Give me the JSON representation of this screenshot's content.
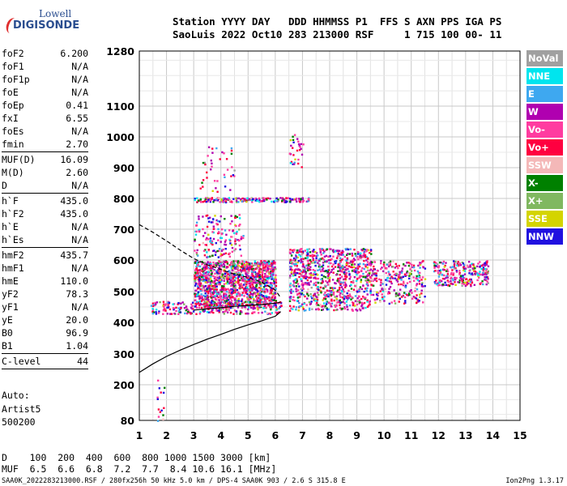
{
  "logo": {
    "top": "Lowell",
    "bottom": "DIGISONDE"
  },
  "header": {
    "line1": "Station YYYY DAY   DDD HHMMSS P1  FFS S AXN PPS IGA PS",
    "line2": "SaoLuis 2022 Oct10 283 213000 RSF     1 715 100 00- 11"
  },
  "params": [
    {
      "k": "foF2",
      "v": "6.200"
    },
    {
      "k": "foF1",
      "v": "N/A"
    },
    {
      "k": "foF1p",
      "v": "N/A"
    },
    {
      "k": "foE",
      "v": "N/A"
    },
    {
      "k": "foEp",
      "v": "0.41"
    },
    {
      "k": "fxI",
      "v": "6.55"
    },
    {
      "k": "foEs",
      "v": "N/A"
    },
    {
      "k": "fmin",
      "v": "2.70"
    },
    {
      "sep": true
    },
    {
      "k": "MUF(D)",
      "v": "16.09"
    },
    {
      "k": "M(D)",
      "v": "2.60"
    },
    {
      "k": "D",
      "v": "N/A"
    },
    {
      "sep": true
    },
    {
      "k": "h`F",
      "v": "435.0"
    },
    {
      "k": "h`F2",
      "v": "435.0"
    },
    {
      "k": "h`E",
      "v": "N/A"
    },
    {
      "k": "h`Es",
      "v": "N/A"
    },
    {
      "sep": true
    },
    {
      "k": "hmF2",
      "v": "435.7"
    },
    {
      "k": "hmF1",
      "v": "N/A"
    },
    {
      "k": "hmE",
      "v": "110.0"
    },
    {
      "k": "yF2",
      "v": "78.3"
    },
    {
      "k": "yF1",
      "v": "N/A"
    },
    {
      "k": "yE",
      "v": "20.0"
    },
    {
      "k": "B0",
      "v": "96.9"
    },
    {
      "k": "B1",
      "v": "1.04"
    },
    {
      "sep": true
    },
    {
      "k": "C-level",
      "v": "44"
    },
    {
      "sep": true
    }
  ],
  "auto": {
    "l1": "Auto:",
    "l2": "Artist5",
    "l3": "500200"
  },
  "legend": [
    {
      "label": "NoVal",
      "color": "#a0a0a0"
    },
    {
      "label": "NNE",
      "color": "#00e5ee"
    },
    {
      "label": "E",
      "color": "#3ea8f0"
    },
    {
      "label": "W",
      "color": "#b000b0"
    },
    {
      "label": "Vo-",
      "color": "#ff3ca0"
    },
    {
      "label": "Vo+",
      "color": "#ff0040"
    },
    {
      "label": "SSW",
      "color": "#f4b8b8"
    },
    {
      "label": "X-",
      "color": "#008000"
    },
    {
      "label": "X+",
      "color": "#80b860"
    },
    {
      "label": "SSE",
      "color": "#d4d400"
    },
    {
      "label": "NNW",
      "color": "#2010e0"
    }
  ],
  "muf_table": {
    "line1": "D    100  200  400  600  800 1000 1500 3000 [km]",
    "line2": "MUF  6.5  6.6  6.8  7.2  7.7  8.4 10.6 16.1 [MHz]"
  },
  "footer": {
    "left": "SAA0K_2022283213000.RSF / 280fx256h 50 kHz 5.0 km / DPS-4 SAA0K 903 / 2.6 S 315.8 E",
    "right": "Ion2Png 1.3.17"
  },
  "chart_data": {
    "type": "scatter",
    "title": "",
    "xlabel": "",
    "ylabel": "",
    "xlim": [
      1,
      15
    ],
    "ylim": [
      80,
      1280
    ],
    "x_ticks": [
      1,
      2,
      3,
      4,
      5,
      6,
      7,
      8,
      9,
      10,
      11,
      12,
      13,
      14,
      15
    ],
    "y_ticks": [
      80,
      200,
      300,
      400,
      500,
      600,
      700,
      800,
      900,
      1000,
      1100,
      1280
    ],
    "grid": true,
    "legend_placement": "right",
    "echo_clusters": [
      {
        "x": [
          3.0,
          6.0
        ],
        "y": [
          450,
          600
        ],
        "note_series": "mixed"
      },
      {
        "x": [
          6.5,
          9.5
        ],
        "y": [
          440,
          640
        ]
      },
      {
        "x": [
          9.5,
          11.5
        ],
        "y": [
          460,
          600
        ]
      },
      {
        "x": [
          11.8,
          13.8
        ],
        "y": [
          520,
          600
        ]
      },
      {
        "x": [
          3.0,
          7.2
        ],
        "y": [
          790,
          805
        ]
      }
    ],
    "profile_curve": {
      "x": [
        1.0,
        1.5,
        2.0,
        2.5,
        3.0,
        3.5,
        4.0,
        4.5,
        5.0,
        5.5,
        6.0,
        6.2
      ],
      "y": [
        240,
        268,
        292,
        312,
        330,
        347,
        362,
        378,
        392,
        405,
        420,
        435
      ]
    },
    "dashed_curve": {
      "x": [
        1.0,
        1.5,
        2.0,
        2.5,
        3.0,
        3.5,
        4.0,
        4.5,
        5.0,
        5.5,
        6.0,
        6.2
      ],
      "y": [
        715,
        690,
        662,
        632,
        605,
        585,
        570,
        555,
        545,
        530,
        505,
        480
      ]
    },
    "trace_curve": {
      "x": [
        3.0,
        3.5,
        4.0,
        4.5,
        5.0,
        5.5,
        6.0,
        6.2
      ],
      "y": [
        440,
        444,
        448,
        452,
        455,
        458,
        462,
        466
      ]
    }
  }
}
